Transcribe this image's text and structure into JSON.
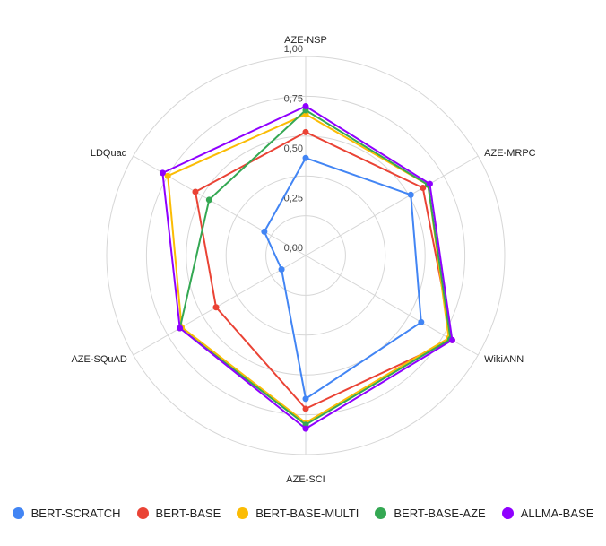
{
  "chart_data": {
    "type": "radar",
    "axes": [
      "AZE-NSP",
      "AZE-MRPC",
      "WikiANN",
      "AZE-SCI",
      "AZE-SQuAD",
      "LDQuad"
    ],
    "tick_labels": [
      "0,00",
      "0,25",
      "0,50",
      "0,75",
      "1,00"
    ],
    "rlim": [
      0,
      1
    ],
    "grid": true,
    "legend_position": "bottom",
    "series": [
      {
        "name": "BERT-SCRATCH",
        "color": "#4285F4",
        "values": [
          0.49,
          0.61,
          0.67,
          0.72,
          0.14,
          0.24
        ]
      },
      {
        "name": "BERT-BASE",
        "color": "#EA4335",
        "values": [
          0.62,
          0.68,
          0.85,
          0.77,
          0.52,
          0.64
        ]
      },
      {
        "name": "BERT-BASE-MULTI",
        "color": "#FBBC04",
        "values": [
          0.71,
          0.71,
          0.83,
          0.84,
          0.72,
          0.8
        ]
      },
      {
        "name": "BERT-BASE-AZE",
        "color": "#34A853",
        "values": [
          0.73,
          0.71,
          0.84,
          0.85,
          0.73,
          0.56
        ]
      },
      {
        "name": "ALLMA-BASE",
        "color": "#8F00FF",
        "values": [
          0.75,
          0.72,
          0.85,
          0.87,
          0.73,
          0.83
        ]
      }
    ]
  }
}
